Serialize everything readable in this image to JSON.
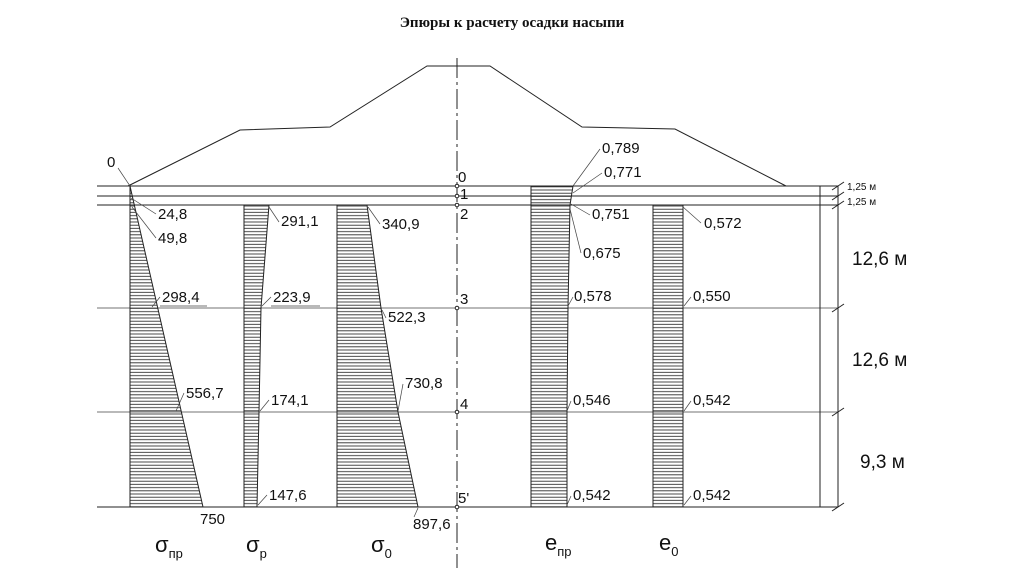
{
  "title": "Эпюры к расчету осадки насыпи",
  "nodes": [
    "0",
    "1",
    "2",
    "3",
    "4",
    "5'"
  ],
  "layer_thickness": {
    "t1": "1,25 м",
    "t2": "1,25 м",
    "t3": "12,6 м",
    "t4": "12,6 м",
    "t5": "9,3 м"
  },
  "sigma_pr": {
    "label_main": "σ",
    "label_sub": "пр",
    "v0": "0",
    "v1": "24,8",
    "v2": "49,8",
    "v3": "298,4",
    "v4": "556,7",
    "v5": "750"
  },
  "sigma_p": {
    "label_main": "σ",
    "label_sub": "р",
    "v2": "291,1",
    "v3": "223,9",
    "v4": "174,1",
    "v5": "147,6"
  },
  "sigma_0": {
    "label_main": "σ",
    "label_sub": "0",
    "v2": "340,9",
    "v3": "522,3",
    "v4": "730,8",
    "v5": "897,6"
  },
  "e_pr": {
    "label_main": "е",
    "label_sub": "пр",
    "v0": "0,789",
    "v1": "0,771",
    "v2a": "0,751",
    "v2b": "0,675",
    "v3": "0,578",
    "v4": "0,546",
    "v5": "0,542"
  },
  "e_0": {
    "label_main": "е",
    "label_sub": "0",
    "v2": "0,572",
    "v3": "0,550",
    "v4": "0,542",
    "v5": "0,542"
  }
}
